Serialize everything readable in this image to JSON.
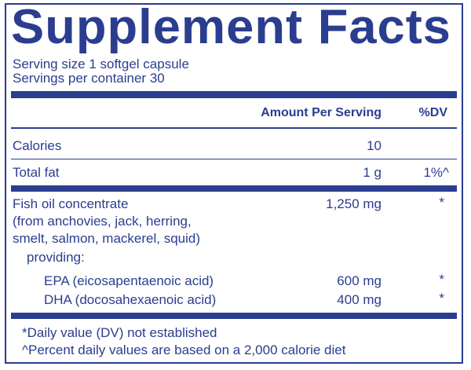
{
  "label": {
    "title": "Supplement Facts",
    "serving_size": "Serving size  1 softgel capsule",
    "servings_per_container": "Servings per container  30",
    "header": {
      "amount": "Amount Per Serving",
      "dv": "%DV"
    },
    "rows": [
      {
        "name": "Calories",
        "amount": "10",
        "dv": ""
      },
      {
        "name": "Total fat",
        "amount": "1 g",
        "dv": "1%^"
      },
      {
        "name": "Fish oil concentrate",
        "amount": "1,250 mg",
        "dv": "*"
      }
    ],
    "fish_oil_source_lines": [
      "(from anchovies, jack, herring,",
      "smelt, salmon, mackerel, squid)"
    ],
    "providing": "providing:",
    "sub_rows": [
      {
        "name": "EPA (eicosapentaenoic acid)",
        "amount": "600 mg",
        "dv": "*"
      },
      {
        "name": "DHA (docosahexaenoic acid)",
        "amount": "400 mg",
        "dv": "*"
      }
    ],
    "footnotes": [
      "*Daily value (DV) not established",
      "^Percent daily values are based on a 2,000 calorie diet"
    ]
  },
  "colors": {
    "ink": "#2a3d8f",
    "background": "#ffffff"
  }
}
